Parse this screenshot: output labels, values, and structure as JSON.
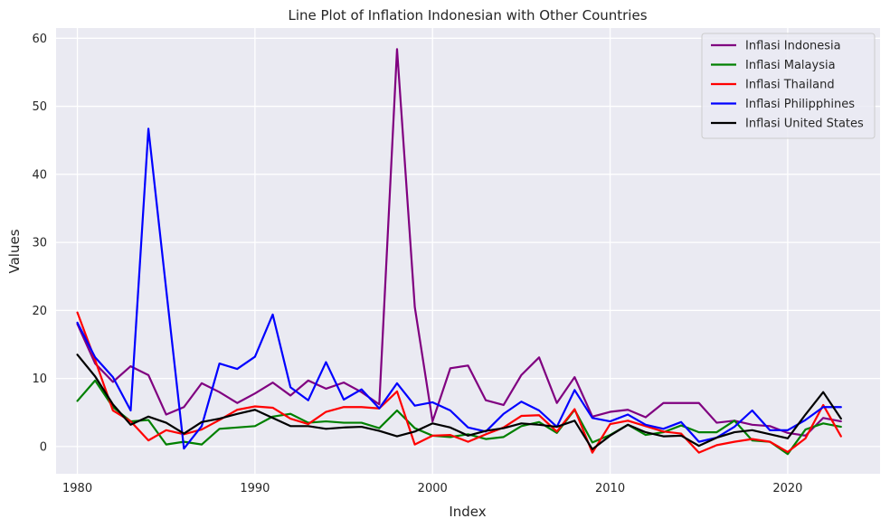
{
  "chart_data": {
    "type": "line",
    "title": "Line Plot of Inflation Indonesian with Other Countries",
    "xlabel": "Index",
    "ylabel": "Values",
    "xlim": [
      1978.8,
      2025.2
    ],
    "ylim": [
      -4,
      61.5
    ],
    "xticks": [
      1980,
      1990,
      2000,
      2010,
      2020
    ],
    "yticks": [
      0,
      10,
      20,
      30,
      40,
      50,
      60
    ],
    "grid": true,
    "legend_position": "top-right",
    "x": [
      1980,
      1981,
      1982,
      1983,
      1984,
      1985,
      1986,
      1987,
      1988,
      1989,
      1990,
      1991,
      1992,
      1993,
      1994,
      1995,
      1996,
      1997,
      1998,
      1999,
      2000,
      2001,
      2002,
      2003,
      2004,
      2005,
      2006,
      2007,
      2008,
      2009,
      2010,
      2011,
      2012,
      2013,
      2014,
      2015,
      2016,
      2017,
      2018,
      2019,
      2020,
      2021,
      2022,
      2023
    ],
    "series": [
      {
        "name": "Inflasi Indonesia",
        "color": "#800080",
        "values": [
          18.0,
          12.2,
          9.5,
          11.8,
          10.5,
          4.7,
          5.8,
          9.3,
          8.0,
          6.4,
          7.8,
          9.4,
          7.5,
          9.7,
          8.5,
          9.4,
          8.0,
          6.2,
          58.4,
          20.5,
          3.7,
          11.5,
          11.9,
          6.8,
          6.1,
          10.5,
          13.1,
          6.4,
          10.2,
          4.4,
          5.1,
          5.4,
          4.3,
          6.4,
          6.4,
          6.4,
          3.5,
          3.8,
          3.2,
          3.0,
          2.0,
          1.6,
          4.2,
          3.7
        ]
      },
      {
        "name": "Inflasi Malaysia",
        "color": "#008000",
        "values": [
          6.7,
          9.7,
          5.8,
          3.7,
          3.9,
          0.3,
          0.7,
          0.3,
          2.6,
          2.8,
          3.0,
          4.4,
          4.8,
          3.5,
          3.7,
          3.5,
          3.5,
          2.7,
          5.3,
          2.7,
          1.6,
          1.4,
          1.8,
          1.1,
          1.4,
          3.0,
          3.6,
          2.0,
          5.4,
          0.6,
          1.7,
          3.2,
          1.7,
          2.1,
          3.1,
          2.1,
          2.1,
          3.8,
          0.9,
          0.7,
          -1.1,
          2.5,
          3.4,
          2.9
        ]
      },
      {
        "name": "Inflasi Thailand",
        "color": "#ff0000",
        "values": [
          19.7,
          12.7,
          5.3,
          3.7,
          0.9,
          2.4,
          1.8,
          2.5,
          3.9,
          5.4,
          5.9,
          5.7,
          4.1,
          3.3,
          5.1,
          5.8,
          5.8,
          5.6,
          8.1,
          0.3,
          1.6,
          1.7,
          0.7,
          1.8,
          2.8,
          4.5,
          4.6,
          2.2,
          5.5,
          -0.9,
          3.3,
          3.8,
          3.0,
          2.2,
          1.9,
          -0.9,
          0.2,
          0.7,
          1.1,
          0.7,
          -0.8,
          1.2,
          6.1,
          1.5
        ]
      },
      {
        "name": "Inflasi Philipphines",
        "color": "#0000ff",
        "values": [
          18.2,
          13.1,
          10.2,
          5.3,
          46.7,
          23.1,
          -0.3,
          3.0,
          12.2,
          11.4,
          13.2,
          19.4,
          8.7,
          6.8,
          12.4,
          6.9,
          8.4,
          5.6,
          9.3,
          6.0,
          6.5,
          5.3,
          2.8,
          2.2,
          4.8,
          6.6,
          5.3,
          2.9,
          8.3,
          4.2,
          3.7,
          4.7,
          3.2,
          2.6,
          3.6,
          0.7,
          1.3,
          2.9,
          5.3,
          2.4,
          2.4,
          3.9,
          5.8,
          5.8
        ]
      },
      {
        "name": "Inflasi United States",
        "color": "#000000",
        "values": [
          13.5,
          10.3,
          6.2,
          3.2,
          4.4,
          3.5,
          1.9,
          3.6,
          4.1,
          4.8,
          5.4,
          4.2,
          3.0,
          3.0,
          2.6,
          2.8,
          2.9,
          2.3,
          1.5,
          2.2,
          3.4,
          2.8,
          1.6,
          2.3,
          2.7,
          3.4,
          3.2,
          2.9,
          3.8,
          -0.4,
          1.6,
          3.2,
          2.1,
          1.5,
          1.6,
          0.1,
          1.3,
          2.1,
          2.4,
          1.8,
          1.2,
          4.7,
          8.0,
          4.1
        ]
      }
    ]
  },
  "colors": {
    "plot_background": "#eaeaf2",
    "grid": "#ffffff",
    "text": "#262626"
  }
}
